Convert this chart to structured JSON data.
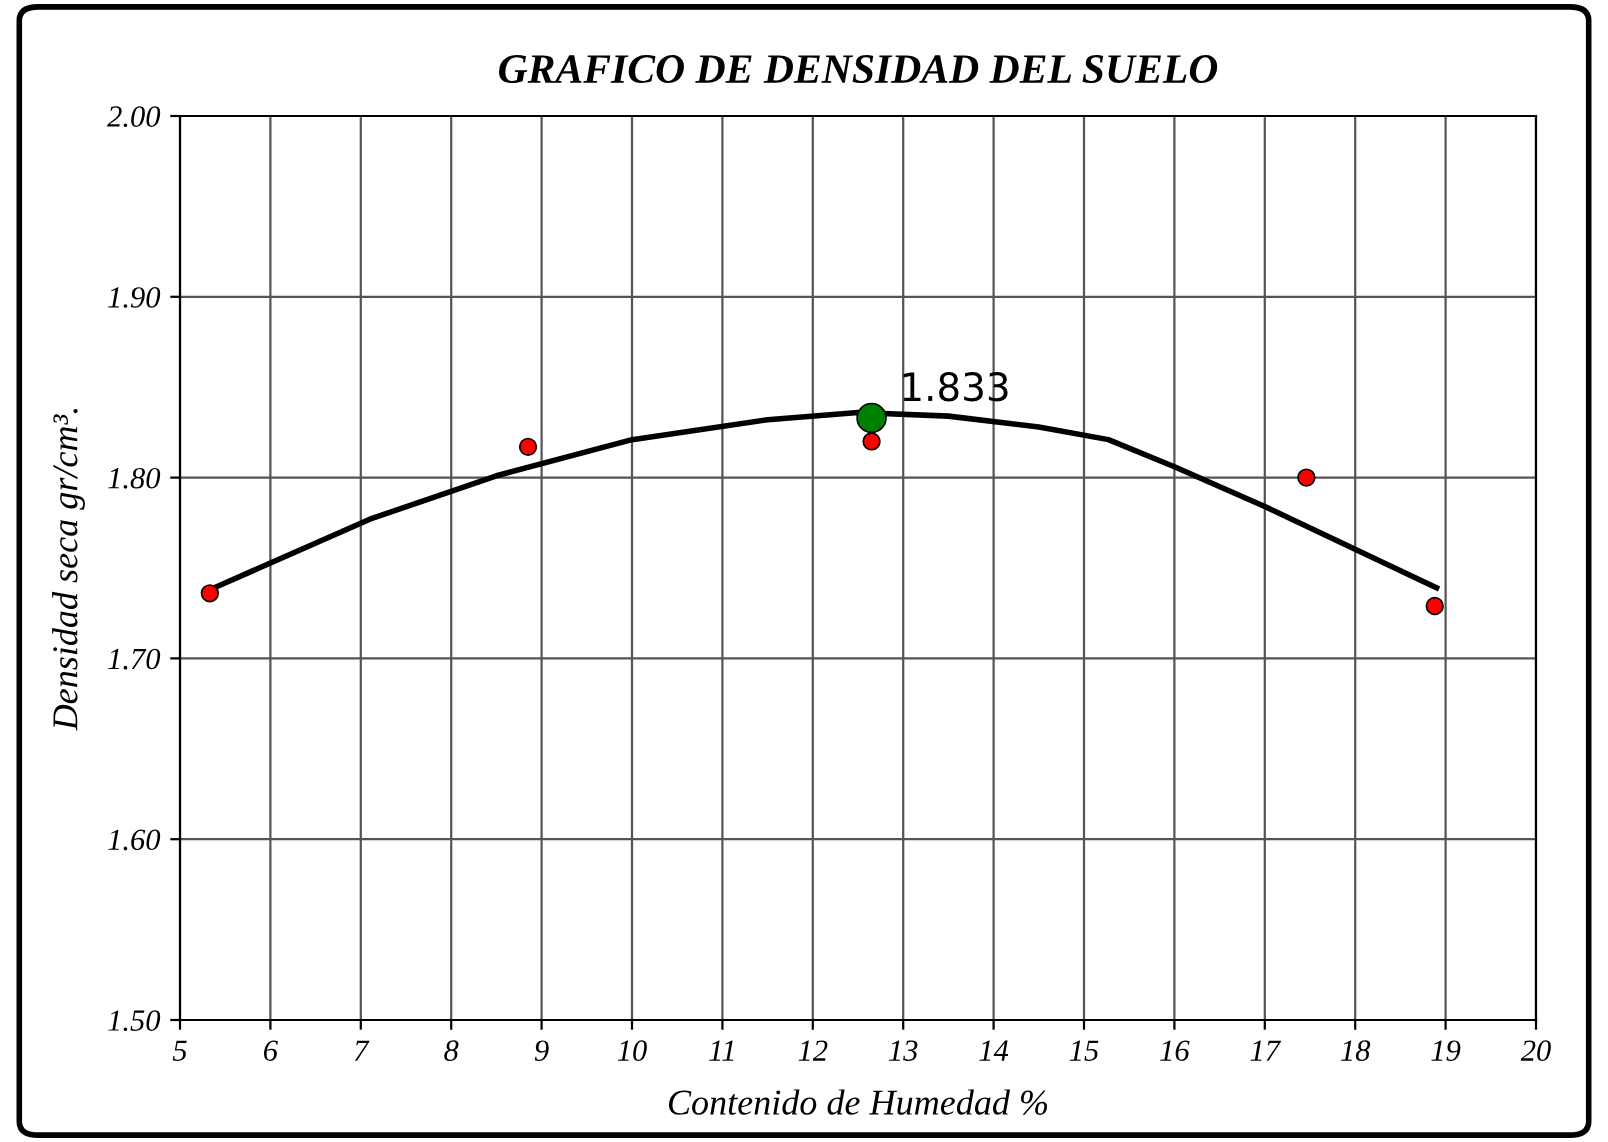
{
  "chart_data": {
    "type": "scatter",
    "title": "GRAFICO DE DENSIDAD DEL SUELO",
    "xlabel": "Contenido de Humedad %",
    "ylabel": "Densidad seca gr/cm³.",
    "xlim": [
      5,
      20
    ],
    "xticks": [
      5,
      6,
      7,
      8,
      9,
      10,
      11,
      12,
      13,
      14,
      15,
      16,
      17,
      18,
      19,
      20
    ],
    "ylim": [
      1.5,
      2.0
    ],
    "yticks": [
      {
        "value": 1.5,
        "label": "1.50"
      },
      {
        "value": 1.6,
        "label": "1.60"
      },
      {
        "value": 1.7,
        "label": "1.70"
      },
      {
        "value": 1.8,
        "label": "1.80"
      },
      {
        "value": 1.9,
        "label": "1.90"
      },
      {
        "value": 2.0,
        "label": "2.00"
      }
    ],
    "grid": true,
    "legend": false,
    "series": [
      {
        "type": "line",
        "color": "#000000",
        "marker": "none",
        "line_style": "solid",
        "x": [
          5.33,
          7.1,
          8.5,
          10,
          11.5,
          12.5,
          13.5,
          14.5,
          15.27,
          16,
          17,
          18.9
        ],
        "values": [
          1.738,
          1.777,
          1.801,
          1.821,
          1.832,
          1.836,
          1.834,
          1.828,
          1.821,
          1.806,
          1.784,
          1.739
        ]
      },
      {
        "color": "#ff0000",
        "marker": "circle",
        "x": [
          5.33,
          8.85,
          12.65,
          17.46,
          18.88
        ],
        "values": [
          1.736,
          1.817,
          1.82,
          1.8,
          1.729
        ]
      },
      {
        "color": "#008000",
        "marker": "circle",
        "x": [
          12.65
        ],
        "values": [
          1.833
        ],
        "value_labels": [
          "1.833"
        ]
      }
    ]
  }
}
